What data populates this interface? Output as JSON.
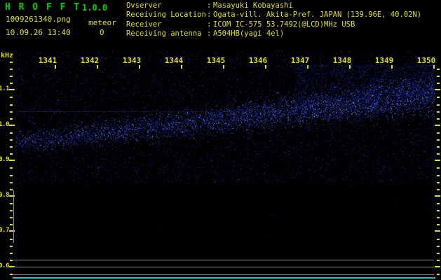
{
  "app": {
    "title": "H R O F F T",
    "version": "1.0.0"
  },
  "header": {
    "filename": "1009261340.png",
    "mode": "meteor",
    "datetime": "10.09.26 13:40",
    "count": "0",
    "separator": ":",
    "info": [
      {
        "label": "Ovserver",
        "value": "Masayuki Kobayashi"
      },
      {
        "label": "Receiving Location",
        "value": "Ogata-vill. Akita-Pref. JAPAN (139.96E, 40.02N)"
      },
      {
        "label": "Receiver",
        "value": "ICOM IC-575 53.7492(@LCD)MHz USB"
      },
      {
        "label": "Receiving antenna",
        "value": "A504HB(yagi 4el)"
      }
    ]
  },
  "spectrogram": {
    "unit_label": "kHz",
    "freq_tick_labels": [
      "1.1",
      "1.0",
      "0.9",
      "0.8",
      "0.7",
      "0.6"
    ],
    "time_tick_labels": [
      "1341",
      "1342",
      "1343",
      "1344",
      "1345",
      "1346",
      "1347",
      "1348",
      "1349",
      "1350"
    ]
  },
  "colors": {
    "background": "#000000",
    "green": "#00d400",
    "yellow": "#e2e200",
    "gray_line": "#8a8a8a",
    "cyan_line": "#00d2d2",
    "noise_blue": "#2020c0"
  }
}
